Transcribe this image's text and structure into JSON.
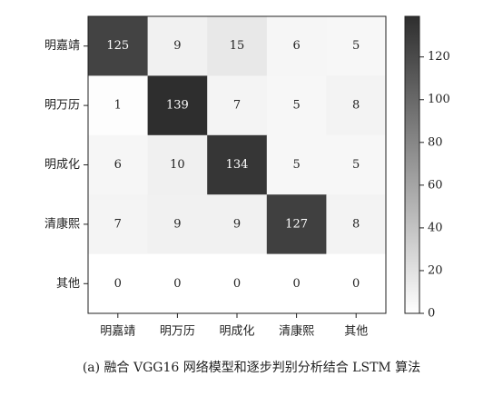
{
  "chart_data": {
    "type": "heatmap",
    "caption": "(a) 融合 VGG16 网络模型和逐步判别分析结合 LSTM 算法",
    "y_categories": [
      "明嘉靖",
      "明万历",
      "明成化",
      "清康熙",
      "其他"
    ],
    "x_categories": [
      "明嘉靖",
      "明万历",
      "明成化",
      "清康熙",
      "其他"
    ],
    "values": [
      [
        125,
        9,
        15,
        6,
        5
      ],
      [
        1,
        139,
        7,
        5,
        8
      ],
      [
        6,
        10,
        134,
        5,
        5
      ],
      [
        7,
        9,
        9,
        127,
        8
      ],
      [
        0,
        0,
        0,
        0,
        0
      ]
    ],
    "zlim": [
      0,
      139
    ],
    "zticks": [
      0,
      20,
      40,
      60,
      80,
      100,
      120
    ],
    "colors": [
      "#ffffff",
      "#2e2e2e"
    ]
  }
}
